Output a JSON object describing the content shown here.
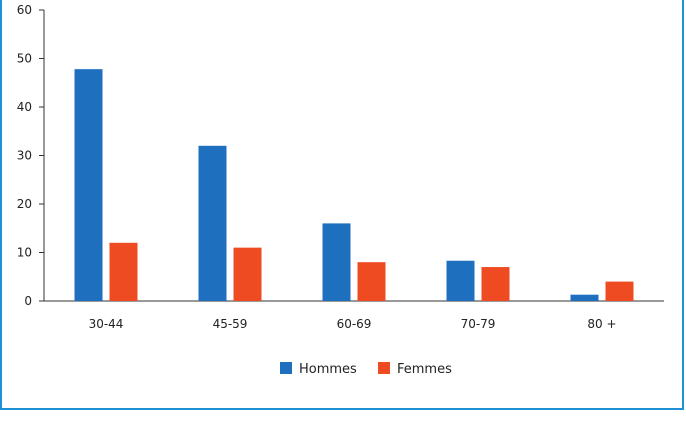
{
  "chart_data": {
    "type": "bar",
    "categories": [
      "30-44",
      "45-59",
      "60-69",
      "70-79",
      "80 +"
    ],
    "series": [
      {
        "name": "Hommes",
        "color": "#1f6fbf",
        "values": [
          47.8,
          32,
          16,
          8.3,
          1.3
        ]
      },
      {
        "name": "Femmes",
        "color": "#ee4b22",
        "values": [
          12,
          11,
          8,
          7,
          4
        ]
      }
    ],
    "y_ticks": [
      0,
      10,
      20,
      30,
      40,
      50,
      60
    ],
    "ylim": [
      0,
      60
    ],
    "grid": false,
    "legend_position": "bottom-center",
    "frame_color": "#1f8fd6"
  }
}
